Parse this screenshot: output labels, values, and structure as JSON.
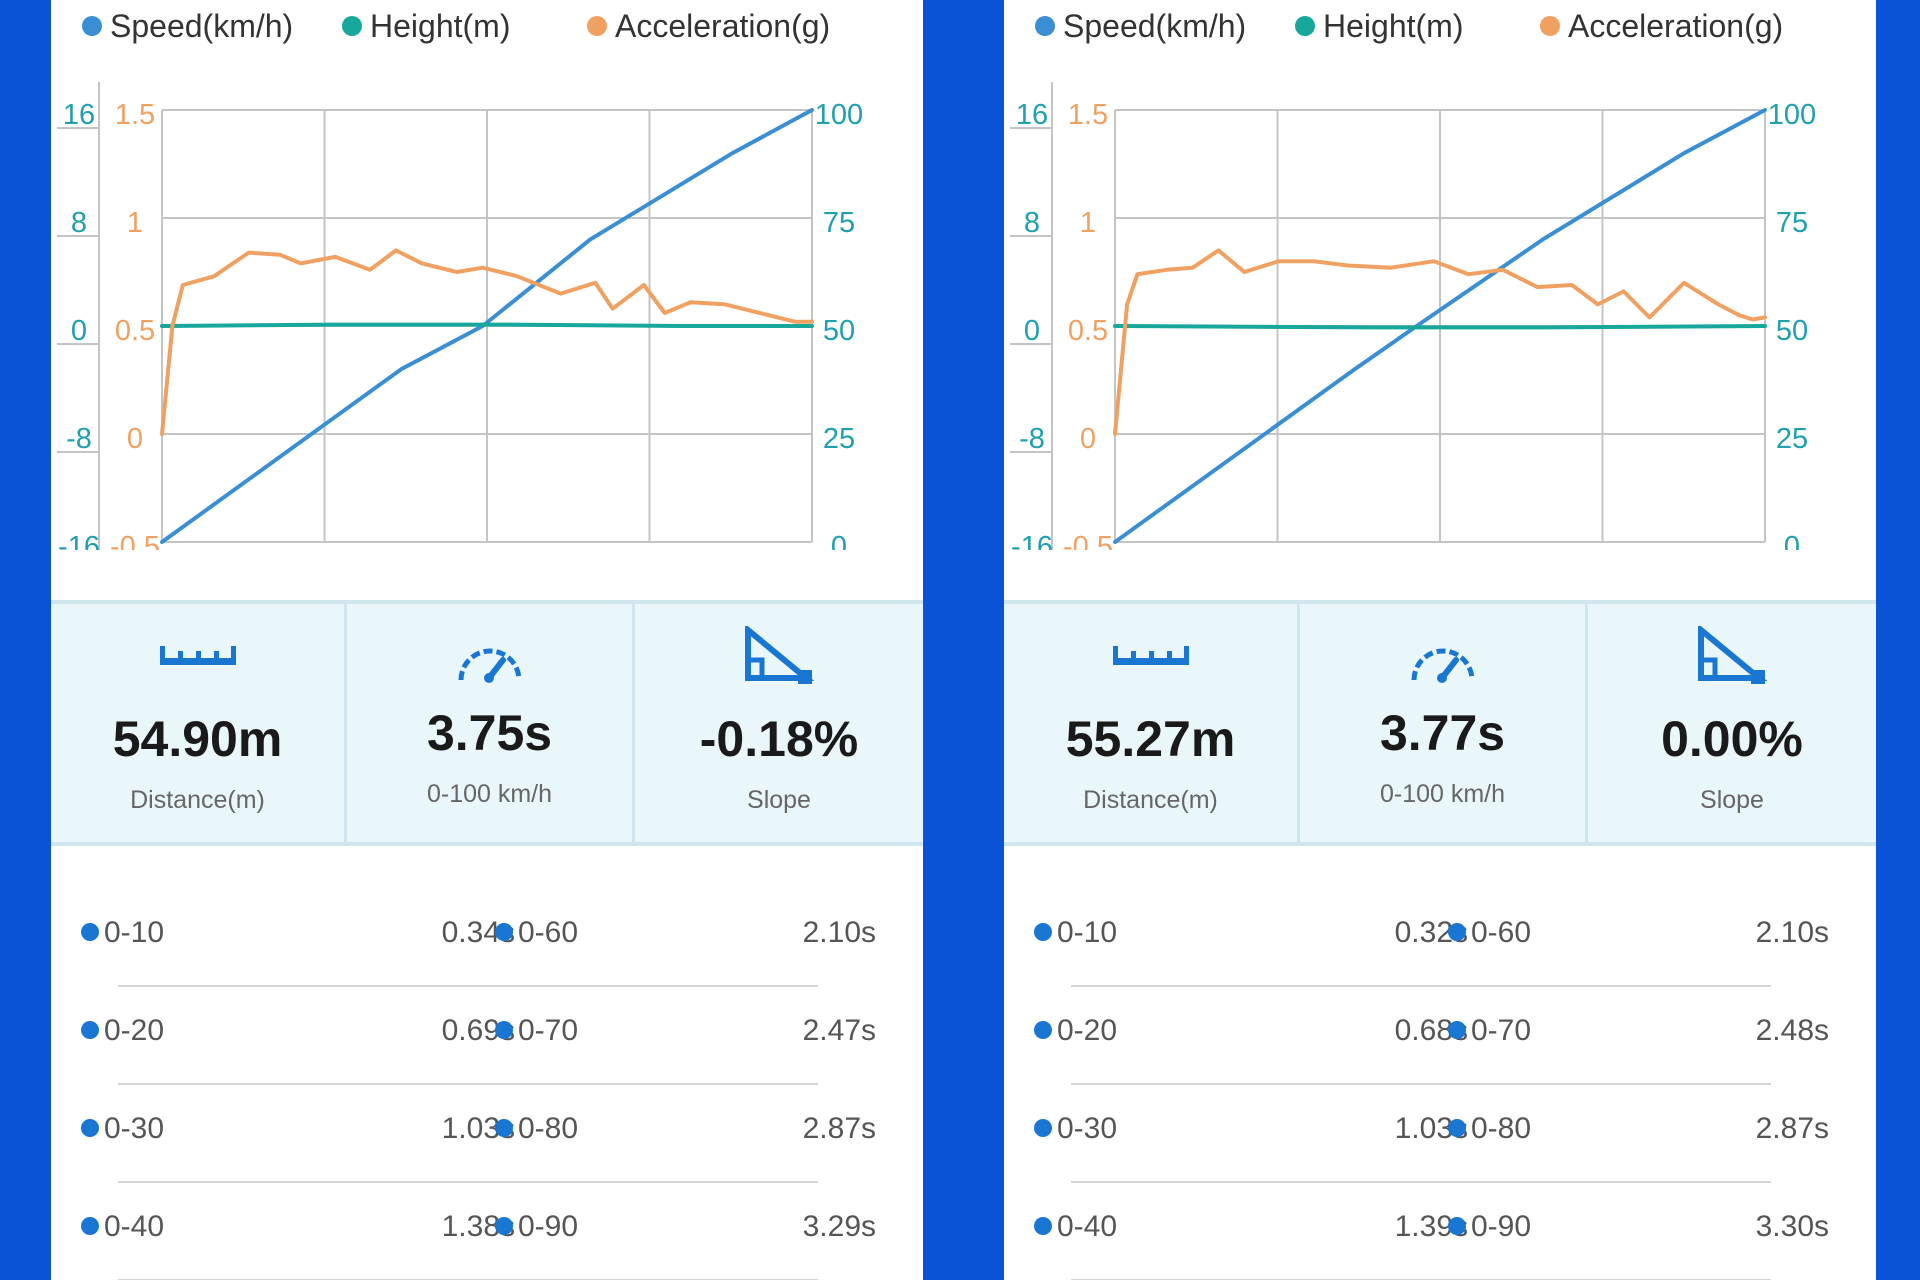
{
  "colors": {
    "speed": "#3a8fd4",
    "height": "#17a79b",
    "acceleration": "#f0a162",
    "accent_blue": "#1976d2",
    "frame": "#0a52d6"
  },
  "panels": [
    {
      "legend": [
        {
          "label": "Speed(km/h)",
          "color": "#3a8fd4"
        },
        {
          "label": "Height(m)",
          "color": "#17a79b"
        },
        {
          "label": "Acceleration(g)",
          "color": "#f0a162"
        }
      ],
      "chart_data": {
        "type": "line",
        "axes": {
          "height_ticks": [
            "16",
            "8",
            "0",
            "-8",
            "-16"
          ],
          "accel_ticks": [
            "1.5",
            "1",
            "0.5",
            "0",
            "-0.5"
          ],
          "speed_ticks": [
            "100",
            "75",
            "50",
            "25",
            "0"
          ],
          "height_range": [
            -16,
            16
          ],
          "accel_range": [
            -0.5,
            1.5
          ],
          "speed_range": [
            0,
            100
          ],
          "time_range": [
            0,
            3.75
          ]
        },
        "series": [
          {
            "name": "Speed(km/h)",
            "color": "#3a8fd4",
            "t": [
              0,
              1.38,
              1.85,
              2.47,
              3.29,
              3.75
            ],
            "values": [
              0,
              40,
              50,
              70,
              90,
              100
            ]
          },
          {
            "name": "Height(m)",
            "color": "#17a79b",
            "t": [
              0,
              0.03,
              1,
              2,
              3,
              3.75
            ],
            "values": [
              0,
              0,
              0.1,
              0.1,
              0,
              0
            ]
          },
          {
            "name": "Acceleration(g)",
            "color": "#f0a162",
            "t": [
              0,
              0.06,
              0.12,
              0.3,
              0.5,
              0.68,
              0.8,
              1.0,
              1.2,
              1.35,
              1.5,
              1.7,
              1.85,
              2.05,
              2.3,
              2.5,
              2.6,
              2.78,
              2.9,
              3.05,
              3.25,
              3.5,
              3.65,
              3.75
            ],
            "values": [
              0,
              0.5,
              0.69,
              0.73,
              0.84,
              0.83,
              0.79,
              0.82,
              0.76,
              0.85,
              0.79,
              0.75,
              0.77,
              0.73,
              0.65,
              0.7,
              0.58,
              0.69,
              0.56,
              0.61,
              0.6,
              0.55,
              0.52,
              0.52
            ]
          }
        ]
      },
      "stats": [
        {
          "value": "54.90m",
          "label": "Distance(m)"
        },
        {
          "value": "3.75s",
          "label": "0-100 km/h"
        },
        {
          "value": "-0.18%",
          "label": "Slope"
        }
      ],
      "times": [
        {
          "l1": "0-10",
          "v1": "0.34s",
          "l2": "0-60",
          "v2": "2.10s"
        },
        {
          "l1": "0-20",
          "v1": "0.69s",
          "l2": "0-70",
          "v2": "2.47s"
        },
        {
          "l1": "0-30",
          "v1": "1.03s",
          "l2": "0-80",
          "v2": "2.87s"
        },
        {
          "l1": "0-40",
          "v1": "1.38s",
          "l2": "0-90",
          "v2": "3.29s"
        }
      ]
    },
    {
      "legend": [
        {
          "label": "Speed(km/h)",
          "color": "#3a8fd4"
        },
        {
          "label": "Height(m)",
          "color": "#17a79b"
        },
        {
          "label": "Acceleration(g)",
          "color": "#f0a162"
        }
      ],
      "chart_data": {
        "type": "line",
        "axes": {
          "height_ticks": [
            "16",
            "8",
            "0",
            "-8",
            "-16"
          ],
          "accel_ticks": [
            "1.5",
            "1",
            "0.5",
            "0",
            "-0.5"
          ],
          "speed_ticks": [
            "100",
            "75",
            "50",
            "25",
            "0"
          ],
          "height_range": [
            -16,
            16
          ],
          "accel_range": [
            -0.5,
            1.5
          ],
          "speed_range": [
            0,
            100
          ],
          "time_range": [
            0,
            3.77
          ]
        },
        "series": [
          {
            "name": "Speed(km/h)",
            "color": "#3a8fd4",
            "t": [
              0,
              1.39,
              1.75,
              2.48,
              3.3,
              3.77
            ],
            "values": [
              0,
              40,
              50,
              70,
              90,
              100
            ]
          },
          {
            "name": "Height(m)",
            "color": "#17a79b",
            "t": [
              0,
              0.03,
              1.5,
              2.5,
              3.77
            ],
            "values": [
              0,
              0,
              -0.1,
              -0.1,
              0
            ]
          },
          {
            "name": "Acceleration(g)",
            "color": "#f0a162",
            "t": [
              0,
              0.07,
              0.13,
              0.3,
              0.45,
              0.6,
              0.75,
              0.95,
              1.15,
              1.35,
              1.6,
              1.85,
              2.05,
              2.25,
              2.45,
              2.65,
              2.8,
              2.95,
              3.1,
              3.3,
              3.5,
              3.62,
              3.7,
              3.77
            ],
            "values": [
              0,
              0.6,
              0.74,
              0.76,
              0.77,
              0.85,
              0.75,
              0.8,
              0.8,
              0.78,
              0.77,
              0.8,
              0.74,
              0.76,
              0.68,
              0.69,
              0.6,
              0.66,
              0.54,
              0.7,
              0.6,
              0.55,
              0.53,
              0.54
            ]
          }
        ]
      },
      "stats": [
        {
          "value": "55.27m",
          "label": "Distance(m)"
        },
        {
          "value": "3.77s",
          "label": "0-100 km/h"
        },
        {
          "value": "0.00%",
          "label": "Slope"
        }
      ],
      "times": [
        {
          "l1": "0-10",
          "v1": "0.32s",
          "l2": "0-60",
          "v2": "2.10s"
        },
        {
          "l1": "0-20",
          "v1": "0.68s",
          "l2": "0-70",
          "v2": "2.48s"
        },
        {
          "l1": "0-30",
          "v1": "1.03s",
          "l2": "0-80",
          "v2": "2.87s"
        },
        {
          "l1": "0-40",
          "v1": "1.39s",
          "l2": "0-90",
          "v2": "3.30s"
        }
      ]
    }
  ]
}
